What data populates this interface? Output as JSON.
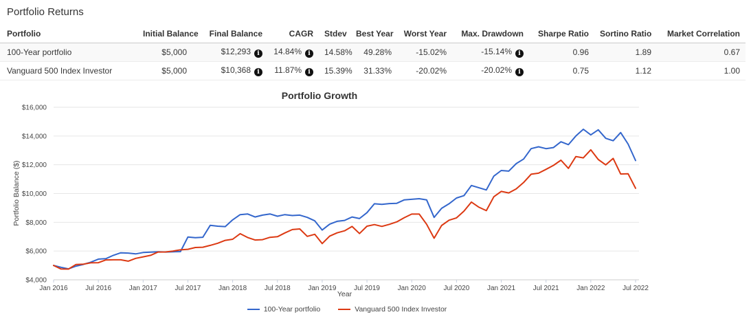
{
  "page": {
    "title": "Portfolio Returns"
  },
  "table": {
    "headers": [
      "Portfolio",
      "Initial Balance",
      "Final Balance",
      "CAGR",
      "Stdev",
      "Best Year",
      "Worst Year",
      "Max. Drawdown",
      "Sharpe Ratio",
      "Sortino Ratio",
      "Market Correlation"
    ],
    "rows": [
      {
        "name": "100-Year portfolio",
        "initial_balance": "$5,000",
        "final_balance": "$12,293",
        "cagr": "14.84%",
        "stdev": "14.58%",
        "best_year": "49.28%",
        "worst_year": "-15.02%",
        "max_drawdown": "-15.14%",
        "sharpe_ratio": "0.96",
        "sortino_ratio": "1.89",
        "market_correlation": "0.67"
      },
      {
        "name": "Vanguard 500 Index Investor",
        "initial_balance": "$5,000",
        "final_balance": "$10,368",
        "cagr": "11.87%",
        "stdev": "15.39%",
        "best_year": "31.33%",
        "worst_year": "-20.02%",
        "max_drawdown": "-20.02%",
        "sharpe_ratio": "0.75",
        "sortino_ratio": "1.12",
        "market_correlation": "1.00"
      }
    ],
    "info_icon": "info-circle"
  },
  "chart_data": {
    "type": "line",
    "title": "Portfolio Growth",
    "xlabel": "Year",
    "ylabel": "Portfolio Balance ($)",
    "ylim": [
      4000,
      16000
    ],
    "y_tick_step": 2000,
    "y_tick_labels": [
      "$4,000",
      "$6,000",
      "$8,000",
      "$10,000",
      "$12,000",
      "$14,000",
      "$16,000"
    ],
    "x_tick_labels": [
      "Jan 2016",
      "Jul 2016",
      "Jan 2017",
      "Jul 2017",
      "Jan 2018",
      "Jul 2018",
      "Jan 2019",
      "Jul 2019",
      "Jan 2020",
      "Jul 2020",
      "Jan 2021",
      "Jul 2021",
      "Jan 2022",
      "Jul 2022"
    ],
    "x_tick_every": 6,
    "x_range": "Jan 2016 - Jun 2022, monthly points starting at $5,000",
    "grid": true,
    "legend_position": "bottom",
    "series": [
      {
        "name": "100-Year portfolio",
        "color": "#3366cc",
        "values": [
          5000,
          4870,
          4760,
          4950,
          5070,
          5230,
          5440,
          5470,
          5700,
          5880,
          5860,
          5800,
          5900,
          5920,
          5950,
          5930,
          5950,
          5960,
          6980,
          6930,
          6960,
          7790,
          7730,
          7700,
          8170,
          8530,
          8580,
          8370,
          8500,
          8580,
          8420,
          8530,
          8470,
          8500,
          8340,
          8100,
          7460,
          7870,
          8070,
          8130,
          8370,
          8260,
          8670,
          9290,
          9250,
          9300,
          9320,
          9560,
          9600,
          9640,
          9560,
          8340,
          8970,
          9290,
          9690,
          9850,
          10560,
          10400,
          10250,
          11210,
          11600,
          11560,
          12080,
          12400,
          13120,
          13250,
          13120,
          13200,
          13600,
          13400,
          14000,
          14470,
          14080,
          14430,
          13840,
          13670,
          14240,
          13440,
          12293
        ]
      },
      {
        "name": "Vanguard 500 Index Investor",
        "color": "#dc3912",
        "values": [
          5000,
          4752,
          4746,
          5068,
          5088,
          5179,
          5192,
          5384,
          5391,
          5392,
          5294,
          5490,
          5598,
          5704,
          5930,
          5937,
          5998,
          6083,
          6121,
          6247,
          6266,
          6395,
          6544,
          6744,
          6819,
          7209,
          6943,
          6767,
          6793,
          6956,
          6999,
          7259,
          7496,
          7539,
          7023,
          7166,
          6519,
          7041,
          7267,
          7408,
          7708,
          7219,
          7728,
          7839,
          7715,
          7859,
          8030,
          8321,
          8572,
          8569,
          7863,
          6892,
          7775,
          8145,
          8307,
          8776,
          9407,
          9049,
          8808,
          9773,
          10148,
          10041,
          10318,
          10769,
          11343,
          11417,
          11683,
          11959,
          12321,
          11748,
          12570,
          12483,
          13042,
          12366,
          11996,
          12441,
          11356,
          11377,
          10368
        ]
      }
    ]
  }
}
